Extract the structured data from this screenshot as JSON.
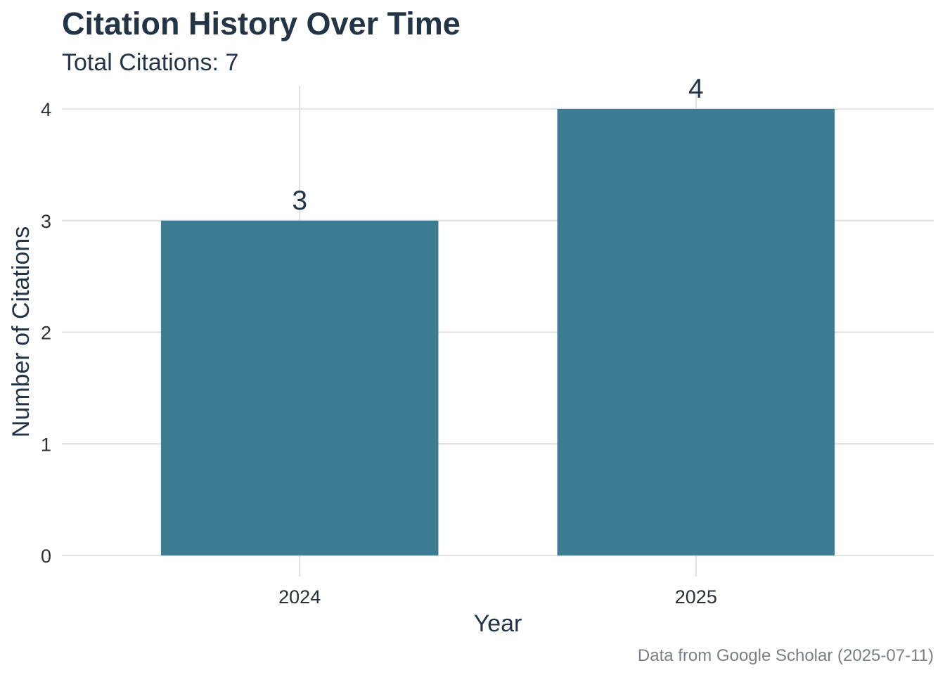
{
  "chart_data": {
    "type": "bar",
    "title": "Citation History Over Time",
    "subtitle": "Total Citations: 7",
    "xlabel": "Year",
    "ylabel": "Number of Citations",
    "caption": "Data from Google Scholar (2025-07-11)",
    "categories": [
      "2024",
      "2025"
    ],
    "values": [
      3,
      4
    ],
    "data_labels": [
      "3",
      "4"
    ],
    "ylim": [
      0,
      4
    ],
    "y_ticks": [
      0,
      1,
      2,
      3,
      4
    ],
    "y_tick_labels": [
      "0",
      "1",
      "2",
      "3",
      "4"
    ],
    "grid": true,
    "legend": "none",
    "colors": {
      "bar": "#3d7d94",
      "text": "#243447",
      "grid": "#e3e3e3",
      "caption": "#7a7f85"
    }
  }
}
